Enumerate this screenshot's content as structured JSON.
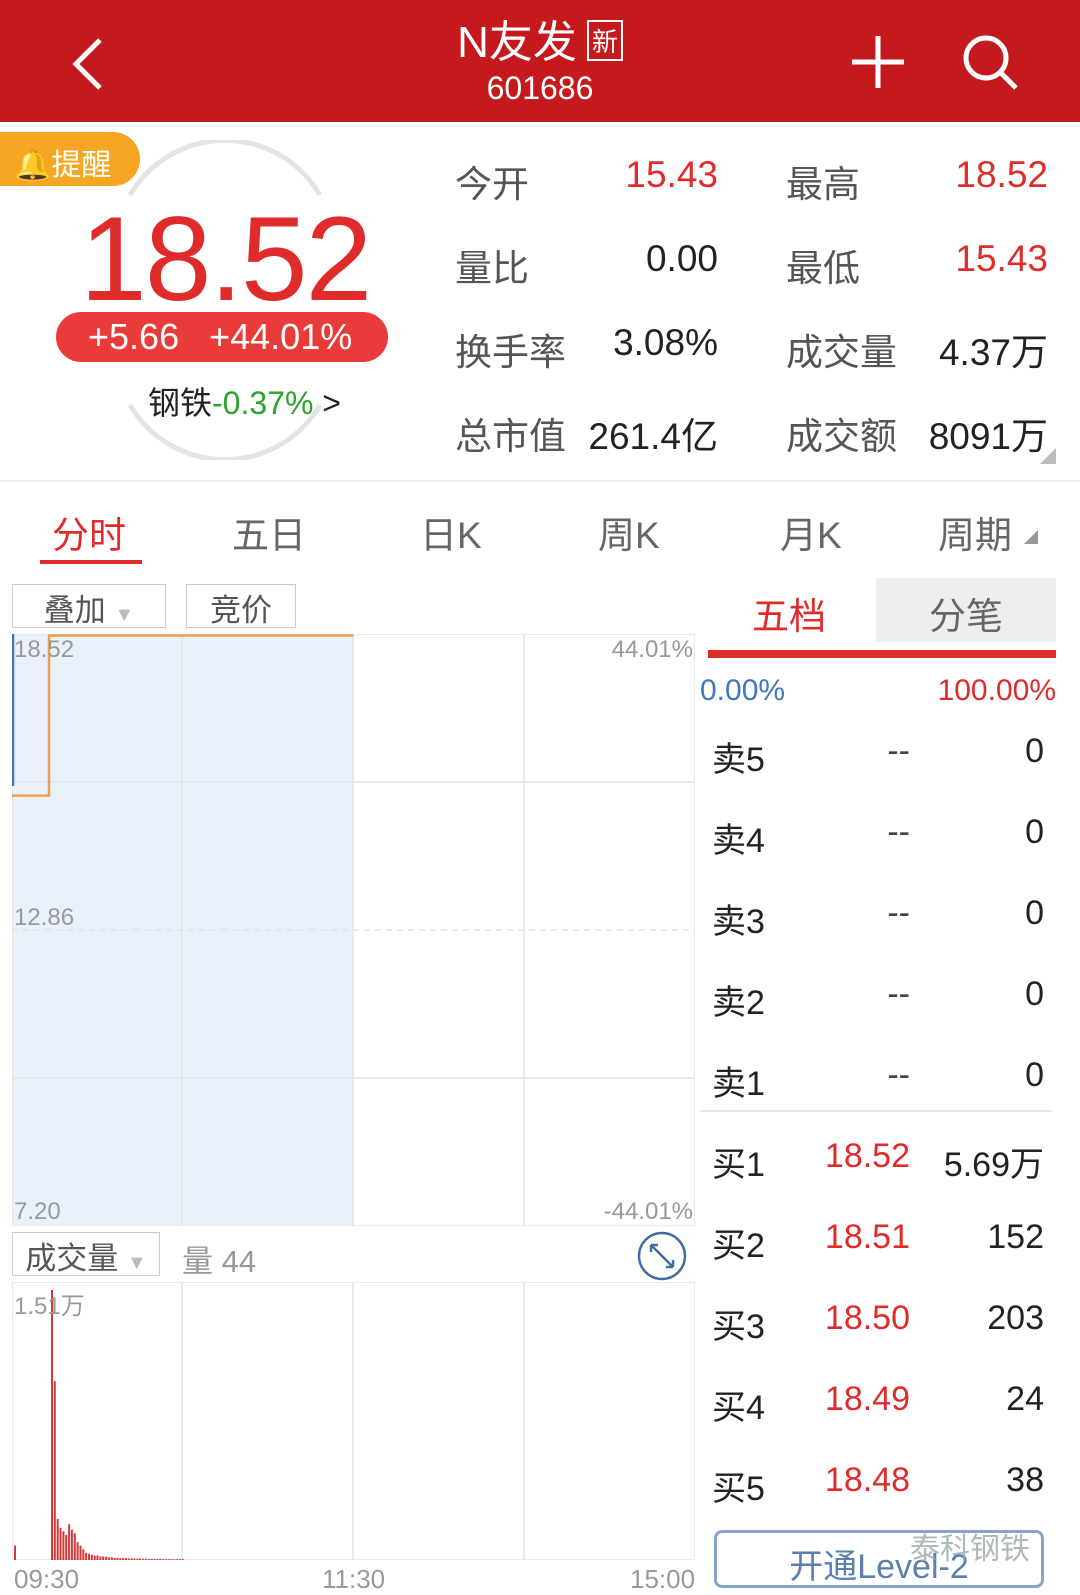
{
  "header": {
    "title": "N友发",
    "badge": "新",
    "code": "601686"
  },
  "quote": {
    "remind": "提醒",
    "price": "18.52",
    "change": "+5.66",
    "change_pct": "+44.01%",
    "sector": "钢铁",
    "sector_pct": "-0.37%",
    "sector_arrow": ">"
  },
  "stats": [
    {
      "label": "今开",
      "value": "15.43",
      "color": "red"
    },
    {
      "label": "最高",
      "value": "18.52",
      "color": "red"
    },
    {
      "label": "量比",
      "value": "0.00",
      "color": "black"
    },
    {
      "label": "最低",
      "value": "15.43",
      "color": "red"
    },
    {
      "label": "换手率",
      "value": "3.08%",
      "color": "black"
    },
    {
      "label": "成交量",
      "value": "4.37万",
      "color": "black"
    },
    {
      "label": "总市值",
      "value": "261.4亿",
      "color": "black"
    },
    {
      "label": "成交额",
      "value": "8091万",
      "color": "black"
    }
  ],
  "tabs": [
    "分时",
    "五日",
    "日K",
    "周K",
    "月K",
    "周期"
  ],
  "chart": {
    "overlay": "叠加",
    "auction": "竞价",
    "price_max": "18.52",
    "price_mid": "12.86",
    "price_min": "7.20",
    "pct_max": "44.01%",
    "pct_min": "-44.01%",
    "vol_selector": "成交量",
    "vol_label": "量 44",
    "vol_max": "1.51万",
    "times": [
      "09:30",
      "11:30",
      "15:00"
    ]
  },
  "chart_data": {
    "type": "line",
    "x_range": [
      "09:30",
      "15:00"
    ],
    "ylim": [
      7.2,
      18.52
    ],
    "price": [
      {
        "t": "09:30",
        "v": 15.43
      },
      {
        "t": "09:43",
        "v": 15.43
      },
      {
        "t": "09:43",
        "v": 18.52
      },
      {
        "t": "11:30",
        "v": 18.52
      }
    ],
    "volume_max": 15100,
    "volume": [
      800,
      0,
      0,
      0,
      0,
      0,
      0,
      0,
      0,
      0,
      0,
      0,
      0,
      15100,
      10000,
      2300,
      1800,
      1600,
      1400,
      2000,
      1700,
      1500,
      1000,
      800,
      600,
      400,
      350,
      300,
      250,
      250,
      200,
      200,
      180,
      150,
      150,
      120,
      120,
      100,
      100,
      100,
      90,
      90,
      80,
      80,
      80,
      70,
      70,
      70,
      60,
      60,
      60,
      60,
      50,
      50,
      50,
      50,
      50,
      50,
      50,
      50
    ]
  },
  "orderbook": {
    "tabs": [
      "五档",
      "分笔"
    ],
    "buy_pct": "0.00%",
    "sell_pct": "100.00%",
    "asks": [
      {
        "label": "卖5",
        "price": "--",
        "vol": "0"
      },
      {
        "label": "卖4",
        "price": "--",
        "vol": "0"
      },
      {
        "label": "卖3",
        "price": "--",
        "vol": "0"
      },
      {
        "label": "卖2",
        "price": "--",
        "vol": "0"
      },
      {
        "label": "卖1",
        "price": "--",
        "vol": "0"
      }
    ],
    "bids": [
      {
        "label": "买1",
        "price": "18.52",
        "vol": "5.69万"
      },
      {
        "label": "买2",
        "price": "18.51",
        "vol": "152"
      },
      {
        "label": "买3",
        "price": "18.50",
        "vol": "203"
      },
      {
        "label": "买4",
        "price": "18.49",
        "vol": "24"
      },
      {
        "label": "买5",
        "price": "18.48",
        "vol": "38"
      }
    ],
    "level2": "开通Level-2"
  },
  "watermark": "泰科钢铁"
}
